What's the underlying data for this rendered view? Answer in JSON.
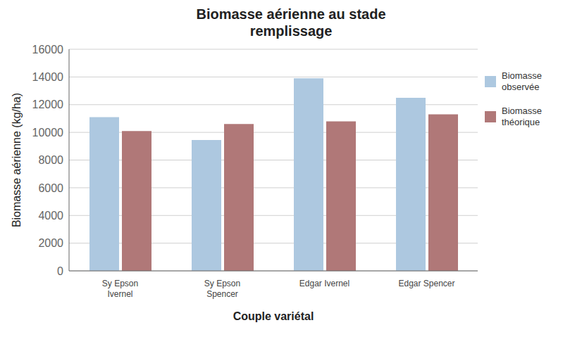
{
  "chart_data": {
    "type": "bar",
    "title": "Biomasse aérienne au stade\nremplissage",
    "xlabel": "Couple variétal",
    "ylabel": "Biomasse aérienne (kg/ha)",
    "categories": [
      "Sy Epson\nIvernel",
      "Sy Epson\nSpencer",
      "Edgar Ivernel",
      "Edgar Spencer"
    ],
    "series": [
      {
        "name": "Biomasse\nobservée",
        "color": "#adc8e0",
        "values": [
          11100,
          9450,
          13900,
          12500
        ]
      },
      {
        "name": "Biomasse\nthéorique",
        "color": "#b07878",
        "values": [
          10100,
          10600,
          10800,
          11300
        ]
      }
    ],
    "ylim": [
      0,
      16000
    ],
    "yticks": [
      0,
      2000,
      4000,
      6000,
      8000,
      10000,
      12000,
      14000,
      16000
    ],
    "grid": true,
    "legend": "upper right"
  }
}
